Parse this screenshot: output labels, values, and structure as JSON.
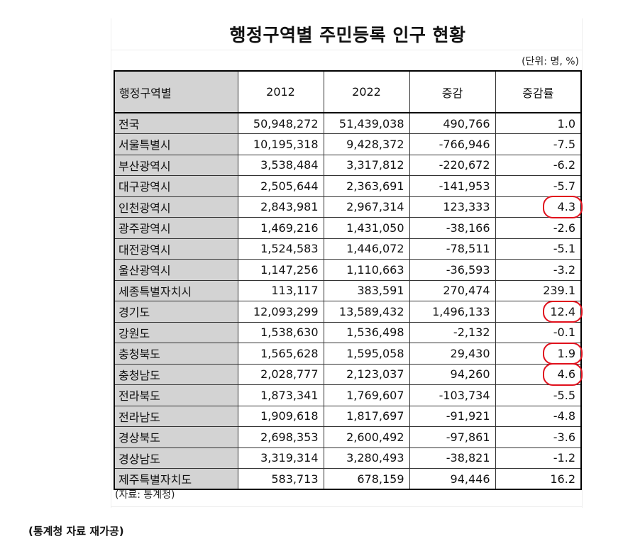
{
  "title": "행정구역별 주민등록 인구 현황",
  "unit": "(단위: 명, %)",
  "columns": [
    "행정구역별",
    "2012",
    "2022",
    "증감",
    "증감률"
  ],
  "rows": [
    {
      "region": "전국",
      "y2012": "50,948,272",
      "y2022": "51,439,038",
      "change": "490,766",
      "rate": "1.0",
      "highlighted": false
    },
    {
      "region": "서울특별시",
      "y2012": "10,195,318",
      "y2022": "9,428,372",
      "change": "-766,946",
      "rate": "-7.5",
      "highlighted": false
    },
    {
      "region": "부산광역시",
      "y2012": "3,538,484",
      "y2022": "3,317,812",
      "change": "-220,672",
      "rate": "-6.2",
      "highlighted": false
    },
    {
      "region": "대구광역시",
      "y2012": "2,505,644",
      "y2022": "2,363,691",
      "change": "-141,953",
      "rate": "-5.7",
      "highlighted": false
    },
    {
      "region": "인천광역시",
      "y2012": "2,843,981",
      "y2022": "2,967,314",
      "change": "123,333",
      "rate": "4.3",
      "highlighted": true
    },
    {
      "region": "광주광역시",
      "y2012": "1,469,216",
      "y2022": "1,431,050",
      "change": "-38,166",
      "rate": "-2.6",
      "highlighted": false
    },
    {
      "region": "대전광역시",
      "y2012": "1,524,583",
      "y2022": "1,446,072",
      "change": "-78,511",
      "rate": "-5.1",
      "highlighted": false
    },
    {
      "region": "울산광역시",
      "y2012": "1,147,256",
      "y2022": "1,110,663",
      "change": "-36,593",
      "rate": "-3.2",
      "highlighted": false
    },
    {
      "region": "세종특별자치시",
      "y2012": "113,117",
      "y2022": "383,591",
      "change": "270,474",
      "rate": "239.1",
      "highlighted": false
    },
    {
      "region": "경기도",
      "y2012": "12,093,299",
      "y2022": "13,589,432",
      "change": "1,496,133",
      "rate": "12.4",
      "highlighted": true
    },
    {
      "region": "강원도",
      "y2012": "1,538,630",
      "y2022": "1,536,498",
      "change": "-2,132",
      "rate": "-0.1",
      "highlighted": false
    },
    {
      "region": "충청북도",
      "y2012": "1,565,628",
      "y2022": "1,595,058",
      "change": "29,430",
      "rate": "1.9",
      "highlighted": true
    },
    {
      "region": "충청남도",
      "y2012": "2,028,777",
      "y2022": "2,123,037",
      "change": "94,260",
      "rate": "4.6",
      "highlighted": true
    },
    {
      "region": "전라북도",
      "y2012": "1,873,341",
      "y2022": "1,769,607",
      "change": "-103,734",
      "rate": "-5.5",
      "highlighted": false
    },
    {
      "region": "전라남도",
      "y2012": "1,909,618",
      "y2022": "1,817,697",
      "change": "-91,921",
      "rate": "-4.8",
      "highlighted": false
    },
    {
      "region": "경상북도",
      "y2012": "2,698,353",
      "y2022": "2,600,492",
      "change": "-97,861",
      "rate": "-3.6",
      "highlighted": false
    },
    {
      "region": "경상남도",
      "y2012": "3,319,314",
      "y2022": "3,280,493",
      "change": "-38,821",
      "rate": "-1.2",
      "highlighted": false
    },
    {
      "region": "제주특별자치도",
      "y2012": "583,713",
      "y2022": "678,159",
      "change": "94,446",
      "rate": "16.2",
      "highlighted": false
    }
  ],
  "source": "(자료: 통계청)",
  "note": "(통계청 자료 재가공)",
  "colors": {
    "header_fill": "#d3d3d3",
    "highlight_circle": "#e0101c"
  }
}
